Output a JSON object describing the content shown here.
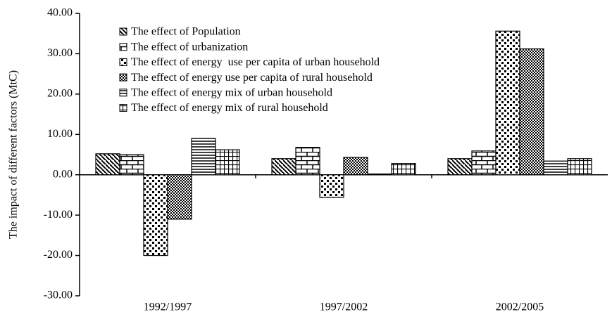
{
  "chart_data": {
    "type": "bar",
    "y_label": "The impact of different factors (MtC)",
    "categories": [
      "1992/1997",
      "1997/2002",
      "2002/2005"
    ],
    "series": [
      {
        "name": "The effect of Population",
        "color": "#000000",
        "pattern": "diagonal",
        "values": [
          5.2,
          4.0,
          4.0
        ]
      },
      {
        "name": "The effect of urbanization",
        "color": "#000000",
        "pattern": "brick",
        "values": [
          5.0,
          6.8,
          5.9
        ]
      },
      {
        "name": "The effect of energy  use per capita of urban household",
        "color": "#000000",
        "pattern": "dots",
        "values": [
          -20.0,
          -5.6,
          35.6
        ]
      },
      {
        "name": "The effect of energy use per capita of rural household",
        "color": "#000000",
        "pattern": "checker",
        "values": [
          -11.0,
          4.3,
          31.2
        ]
      },
      {
        "name": "The effect of energy mix of urban household",
        "color": "#000000",
        "pattern": "hlines",
        "values": [
          9.0,
          0.2,
          3.4
        ]
      },
      {
        "name": "The effect of energy mix of rural household",
        "color": "#000000",
        "pattern": "grid",
        "values": [
          6.2,
          2.8,
          4.0
        ]
      }
    ],
    "ylim": [
      -30,
      40
    ],
    "yticks": [
      {
        "value": -30,
        "label": "-30.00"
      },
      {
        "value": -20,
        "label": "-20.00"
      },
      {
        "value": -10,
        "label": "-10.00"
      },
      {
        "value": 0,
        "label": "0.00"
      },
      {
        "value": 10,
        "label": "10.00"
      },
      {
        "value": 20,
        "label": "20.00"
      },
      {
        "value": 30,
        "label": "30.00"
      },
      {
        "value": 40,
        "label": "40.00"
      }
    ],
    "grid": false,
    "legend": "top-left"
  }
}
